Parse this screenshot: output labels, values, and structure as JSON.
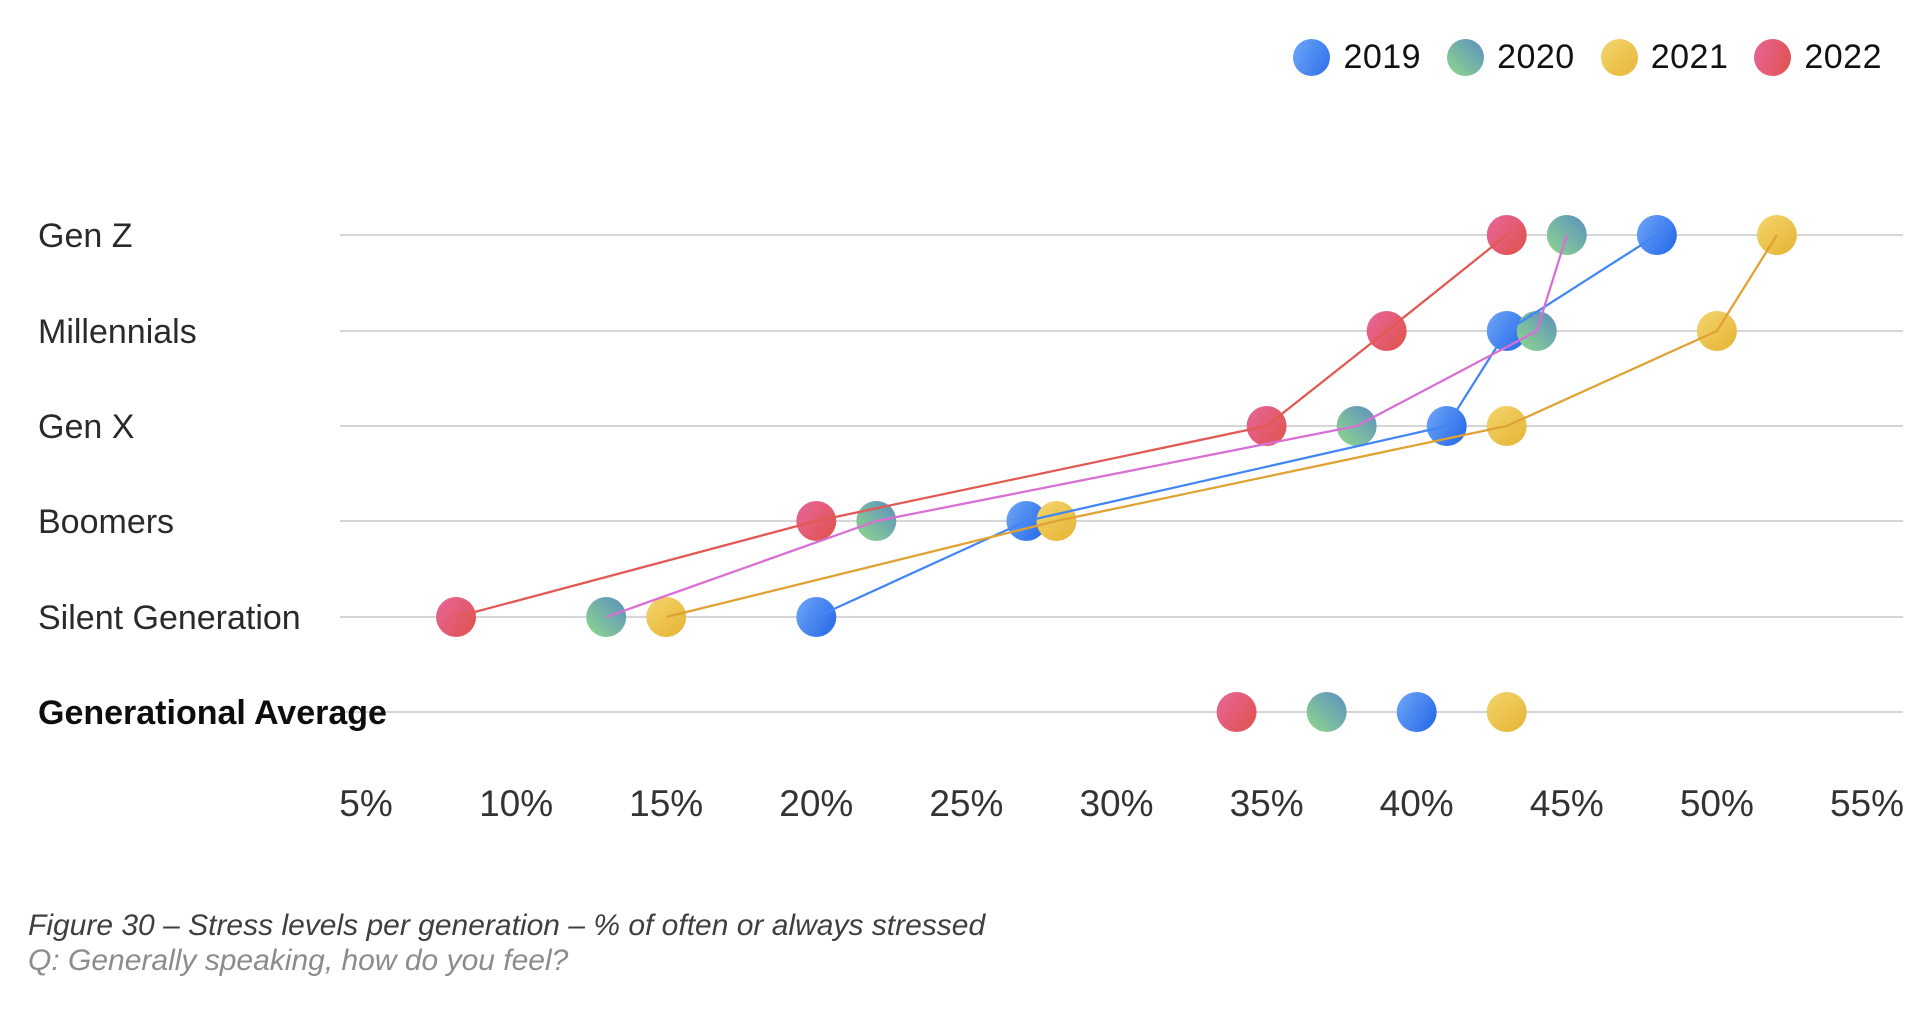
{
  "chart_data": {
    "type": "scatter",
    "title": "Figure 30 – Stress levels per generation – % of often or always stressed",
    "subtitle": "Q: Generally speaking, how do you feel?",
    "categories": [
      "Gen Z",
      "Millennials",
      "Gen X",
      "Boomers",
      "Silent Generation",
      "Generational Average"
    ],
    "bold_category_index": 5,
    "series": [
      {
        "name": "2019",
        "values": [
          48,
          43,
          41,
          27,
          20,
          40
        ],
        "dot_color_start": "#6FA7F8",
        "dot_color_end": "#2D6FE9",
        "line_color": "#4285F4"
      },
      {
        "name": "2020",
        "values": [
          45,
          44,
          38,
          22,
          13,
          37
        ],
        "dot_color_start": "#8FD98C",
        "dot_color_end": "#5B8EC0",
        "line_color": "#D96FD4"
      },
      {
        "name": "2021",
        "values": [
          52,
          50,
          43,
          28,
          15,
          43
        ],
        "dot_color_start": "#F4D56E",
        "dot_color_end": "#E6B637",
        "line_color": "#DFA233"
      },
      {
        "name": "2022",
        "values": [
          43,
          39,
          35,
          20,
          8,
          34
        ],
        "dot_color_start": "#E7659A",
        "dot_color_end": "#E0534B",
        "line_color": "#E25852"
      }
    ],
    "x_ticks": [
      "5%",
      "10%",
      "15%",
      "20%",
      "25%",
      "30%",
      "35%",
      "40%",
      "45%",
      "50%",
      "55%"
    ],
    "xlim": [
      5,
      55
    ],
    "unit": "%",
    "grid": "horizontal-only",
    "legend_position": "top-right",
    "lines_connect_categories": [
      "Gen Z",
      "Millennials",
      "Gen X",
      "Boomers",
      "Silent Generation"
    ]
  },
  "colors": {
    "background": "#ffffff",
    "grid": "#c8c8c8",
    "tick_text": "#333333",
    "category_text": "#2a2a2a",
    "bold_category_text": "#0d0d0d",
    "caption_primary": "#3f3f3f",
    "caption_secondary": "#8c8c8c"
  }
}
